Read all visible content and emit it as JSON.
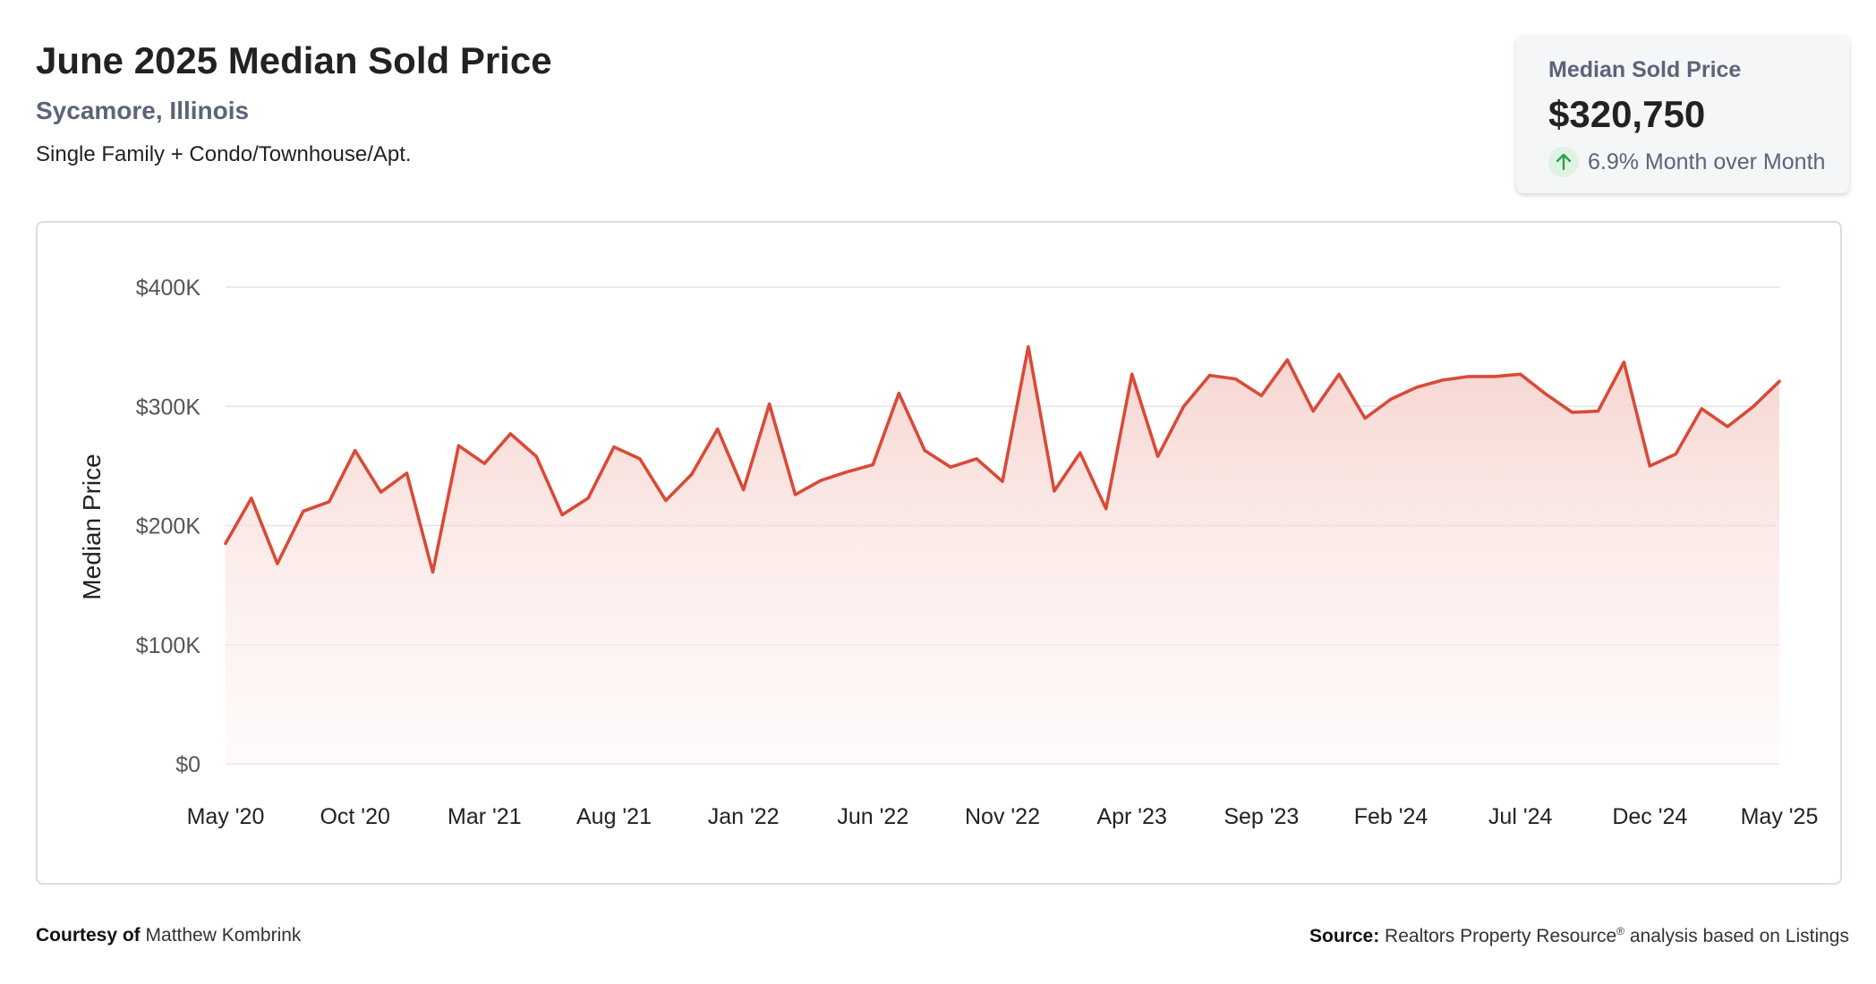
{
  "header": {
    "title": "June 2025 Median Sold Price",
    "location": "Sycamore, Illinois",
    "property_types": "Single Family + Condo/Townhouse/Apt."
  },
  "summary_card": {
    "label": "Median Sold Price",
    "value": "$320,750",
    "change": "6.9% Month over Month",
    "change_icon": "arrow-up-icon",
    "change_color": "#2e9e4f"
  },
  "colors": {
    "line": "#d94a38",
    "area_top": "#f6d2cd",
    "grid": "#e3e3e3"
  },
  "footer": {
    "courtesy_label": "Courtesy of",
    "courtesy_name": "Matthew Kombrink",
    "source_label": "Source:",
    "source_text": "Realtors Property Resource",
    "source_mark": "®",
    "source_suffix": " analysis based on Listings"
  },
  "chart_data": {
    "type": "area",
    "ylabel": "Median Price",
    "ylim": [
      0,
      400000
    ],
    "yticks": [
      0,
      100000,
      200000,
      300000,
      400000
    ],
    "ytick_labels": [
      "$0",
      "$100K",
      "$200K",
      "$300K",
      "$400K"
    ],
    "x_tick_labels": [
      "May '20",
      "Oct '20",
      "Mar '21",
      "Aug '21",
      "Jan '22",
      "Jun '22",
      "Nov '22",
      "Apr '23",
      "Sep '23",
      "Feb '24",
      "Jul '24",
      "Dec '24",
      "May '25"
    ],
    "x_tick_every": 5,
    "grid": true,
    "series": [
      {
        "values": [
          185000,
          223000,
          168000,
          212000,
          220000,
          263000,
          228000,
          244000,
          161000,
          267000,
          252000,
          277000,
          258000,
          209000,
          223000,
          266000,
          256000,
          221000,
          243000,
          281000,
          230000,
          302000,
          226000,
          238000,
          245000,
          251000,
          311000,
          263000,
          249000,
          256000,
          237000,
          350000,
          229000,
          261000,
          214000,
          327000,
          258000,
          300000,
          326000,
          323000,
          309000,
          339000,
          296000,
          327000,
          290000,
          306000,
          316000,
          322000,
          325000,
          325000,
          327000,
          310000,
          295000,
          296000,
          337000,
          250000,
          260000,
          298000,
          283000,
          300000,
          321000
        ]
      }
    ]
  }
}
